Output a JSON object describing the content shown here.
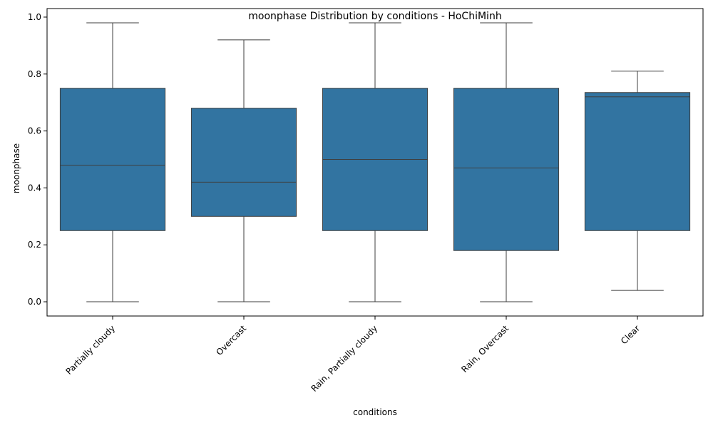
{
  "chart_data": {
    "type": "box",
    "title": "moonphase Distribution by conditions - HoChiMinh",
    "xlabel": "conditions",
    "ylabel": "moonphase",
    "ylim": [
      -0.05,
      1.03
    ],
    "yticks": [
      0.0,
      0.2,
      0.4,
      0.6,
      0.8,
      1.0
    ],
    "ytick_labels": [
      "0.0",
      "0.2",
      "0.4",
      "0.6",
      "0.8",
      "1.0"
    ],
    "grid": false,
    "box_color": "#3274a1",
    "line_color": "#3f3f3f",
    "categories": [
      "Partially cloudy",
      "Overcast",
      "Rain, Partially cloudy",
      "Rain, Overcast",
      "Clear"
    ],
    "boxes": [
      {
        "category": "Partially cloudy",
        "whisker_low": 0.0,
        "q1": 0.25,
        "median": 0.48,
        "q3": 0.75,
        "whisker_high": 0.98
      },
      {
        "category": "Overcast",
        "whisker_low": 0.0,
        "q1": 0.3,
        "median": 0.42,
        "q3": 0.68,
        "whisker_high": 0.92
      },
      {
        "category": "Rain, Partially cloudy",
        "whisker_low": 0.0,
        "q1": 0.25,
        "median": 0.5,
        "q3": 0.75,
        "whisker_high": 0.98
      },
      {
        "category": "Rain, Overcast",
        "whisker_low": 0.0,
        "q1": 0.18,
        "median": 0.47,
        "q3": 0.75,
        "whisker_high": 0.98
      },
      {
        "category": "Clear",
        "whisker_low": 0.04,
        "q1": 0.25,
        "median": 0.72,
        "q3": 0.735,
        "whisker_high": 0.81
      }
    ]
  }
}
